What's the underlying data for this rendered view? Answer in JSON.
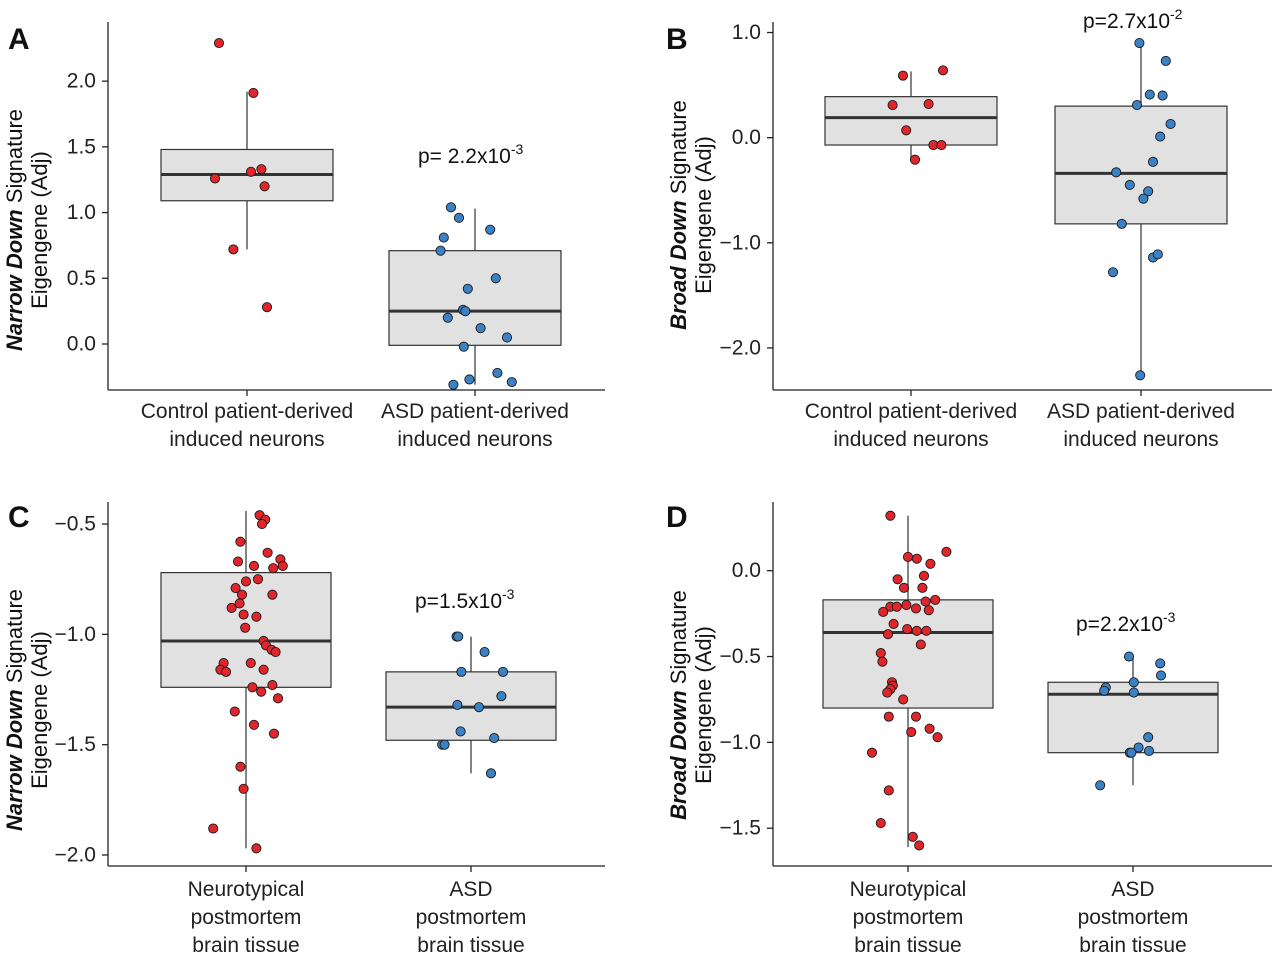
{
  "chart_data": [
    {
      "type": "box",
      "panel": "A",
      "ylabel_bold": "Narrow Down",
      "ylabel_rest": " Signature",
      "ylabel_line2": "Eigengene (Adj)",
      "ylim": [
        -0.35,
        2.45
      ],
      "yticks": [
        0.0,
        0.5,
        1.0,
        1.5,
        2.0
      ],
      "ytick_labels": [
        "0.0",
        "0.5",
        "1.0",
        "1.5",
        "2.0"
      ],
      "p_value": {
        "base": "2.2x10",
        "exp": "-3",
        "prefix": "p= "
      },
      "groups": [
        {
          "label": [
            "Control patient-derived",
            "induced neurons"
          ],
          "color": "#e0262b",
          "box": {
            "q1": 1.09,
            "median": 1.29,
            "q3": 1.48,
            "wlo": 0.72,
            "whi": 1.92
          },
          "points": [
            [
              -0.35,
              2.29
            ],
            [
              0.08,
              1.91
            ],
            [
              0.05,
              1.31
            ],
            [
              0.18,
              1.33
            ],
            [
              -0.4,
              1.26
            ],
            [
              0.22,
              1.2
            ],
            [
              -0.17,
              0.72
            ],
            [
              0.25,
              0.28
            ]
          ]
        },
        {
          "label": [
            "ASD patient-derived",
            "induced neurons"
          ],
          "color": "#3b82c4",
          "box": {
            "q1": -0.01,
            "median": 0.25,
            "q3": 0.71,
            "wlo": -0.31,
            "whi": 1.03
          },
          "points": [
            [
              -0.3,
              1.04
            ],
            [
              -0.2,
              0.96
            ],
            [
              0.19,
              0.87
            ],
            [
              -0.39,
              0.81
            ],
            [
              -0.43,
              0.71
            ],
            [
              0.26,
              0.5
            ],
            [
              -0.09,
              0.42
            ],
            [
              -0.15,
              0.26
            ],
            [
              -0.12,
              0.25
            ],
            [
              -0.34,
              0.2
            ],
            [
              0.07,
              0.12
            ],
            [
              0.4,
              0.05
            ],
            [
              -0.14,
              -0.02
            ],
            [
              0.28,
              -0.22
            ],
            [
              -0.07,
              -0.27
            ],
            [
              -0.27,
              -0.31
            ],
            [
              0.46,
              -0.29
            ]
          ]
        }
      ]
    },
    {
      "type": "box",
      "panel": "B",
      "ylabel_bold": "Broad Down",
      "ylabel_rest": " Signature",
      "ylabel_line2": "Eigengene (Adj)",
      "ylim": [
        -2.4,
        1.1
      ],
      "yticks": [
        -2.0,
        -1.0,
        0.0,
        1.0
      ],
      "ytick_labels": [
        "−2.0",
        "−1.0",
        "0.0",
        "1.0"
      ],
      "p_value": {
        "base": "p=2.7x10",
        "exp": "-2",
        "prefix": ""
      },
      "groups": [
        {
          "label": [
            "Control patient-derived",
            "induced neurons"
          ],
          "color": "#e0262b",
          "box": {
            "q1": -0.07,
            "median": 0.19,
            "q3": 0.39,
            "wlo": -0.22,
            "whi": 0.63
          },
          "points": [
            [
              -0.1,
              0.59
            ],
            [
              0.4,
              0.64
            ],
            [
              -0.23,
              0.31
            ],
            [
              0.22,
              0.32
            ],
            [
              -0.06,
              0.07
            ],
            [
              0.05,
              -0.21
            ],
            [
              0.28,
              -0.07
            ],
            [
              0.38,
              -0.07
            ]
          ]
        },
        {
          "label": [
            "ASD patient-derived",
            "induced neurons"
          ],
          "color": "#3b82c4",
          "box": {
            "q1": -0.82,
            "median": -0.34,
            "q3": 0.3,
            "wlo": -2.26,
            "whi": 0.9
          },
          "points": [
            [
              -0.02,
              0.9
            ],
            [
              0.31,
              0.73
            ],
            [
              0.11,
              0.41
            ],
            [
              0.27,
              0.4
            ],
            [
              -0.05,
              0.31
            ],
            [
              0.37,
              0.13
            ],
            [
              0.24,
              0.01
            ],
            [
              0.15,
              -0.23
            ],
            [
              -0.31,
              -0.33
            ],
            [
              -0.14,
              -0.45
            ],
            [
              0.09,
              -0.51
            ],
            [
              0.03,
              -0.58
            ],
            [
              -0.24,
              -0.82
            ],
            [
              0.15,
              -1.14
            ],
            [
              0.21,
              -1.11
            ],
            [
              -0.35,
              -1.28
            ],
            [
              -0.01,
              -2.26
            ]
          ]
        }
      ]
    },
    {
      "type": "box",
      "panel": "C",
      "ylabel_bold": "Narrow Down",
      "ylabel_rest": " Signature",
      "ylabel_line2": "Eigengene (Adj)",
      "ylim": [
        -2.05,
        -0.4
      ],
      "yticks": [
        -2.0,
        -1.5,
        -1.0,
        -0.5
      ],
      "ytick_labels": [
        "−2.0",
        "−1.5",
        "−1.0",
        "−0.5"
      ],
      "p_value": {
        "base": "p=1.5x10",
        "exp": "-3",
        "prefix": ""
      },
      "groups": [
        {
          "label": [
            "Neurotypical",
            "postmortem",
            "brain tissue"
          ],
          "color": "#e0262b",
          "box": {
            "q1": -1.24,
            "median": -1.03,
            "q3": -0.72,
            "wlo": -1.97,
            "whi": -0.44
          },
          "points": [
            [
              0.17,
              -0.46
            ],
            [
              0.24,
              -0.48
            ],
            [
              0.2,
              -0.5
            ],
            [
              -0.07,
              -0.58
            ],
            [
              0.27,
              -0.63
            ],
            [
              0.43,
              -0.66
            ],
            [
              0.46,
              -0.69
            ],
            [
              -0.1,
              -0.67
            ],
            [
              0.1,
              -0.69
            ],
            [
              0.34,
              -0.7
            ],
            [
              0.0,
              -0.76
            ],
            [
              0.15,
              -0.75
            ],
            [
              -0.13,
              -0.79
            ],
            [
              -0.05,
              -0.82
            ],
            [
              0.33,
              -0.82
            ],
            [
              -0.18,
              -0.88
            ],
            [
              -0.08,
              -0.86
            ],
            [
              -0.03,
              -0.91
            ],
            [
              0.13,
              -0.92
            ],
            [
              -0.01,
              -0.97
            ],
            [
              0.22,
              -1.03
            ],
            [
              0.25,
              -1.05
            ],
            [
              0.32,
              -1.07
            ],
            [
              0.37,
              -1.08
            ],
            [
              -0.28,
              -1.13
            ],
            [
              0.06,
              -1.13
            ],
            [
              0.22,
              -1.16
            ],
            [
              -0.32,
              -1.16
            ],
            [
              -0.25,
              -1.17
            ],
            [
              0.08,
              -1.24
            ],
            [
              0.33,
              -1.23
            ],
            [
              0.19,
              -1.26
            ],
            [
              0.4,
              -1.29
            ],
            [
              -0.14,
              -1.35
            ],
            [
              0.35,
              -1.45
            ],
            [
              0.1,
              -1.41
            ],
            [
              -0.07,
              -1.6
            ],
            [
              -0.03,
              -1.7
            ],
            [
              -0.41,
              -1.88
            ],
            [
              0.13,
              -1.97
            ]
          ]
        },
        {
          "label": [
            "ASD",
            "postmortem",
            "brain tissue"
          ],
          "color": "#3b82c4",
          "box": {
            "q1": -1.48,
            "median": -1.33,
            "q3": -1.17,
            "wlo": -1.63,
            "whi": -1.01
          },
          "points": [
            [
              -0.18,
              -1.01
            ],
            [
              -0.16,
              -1.01
            ],
            [
              0.17,
              -1.08
            ],
            [
              -0.12,
              -1.17
            ],
            [
              0.4,
              -1.17
            ],
            [
              0.38,
              -1.28
            ],
            [
              -0.17,
              -1.32
            ],
            [
              0.1,
              -1.33
            ],
            [
              -0.13,
              -1.44
            ],
            [
              -0.36,
              -1.5
            ],
            [
              -0.33,
              -1.5
            ],
            [
              0.29,
              -1.47
            ],
            [
              0.25,
              -1.63
            ]
          ]
        }
      ]
    },
    {
      "type": "box",
      "panel": "D",
      "ylabel_bold": "Broad Down",
      "ylabel_rest": " Signature",
      "ylabel_line2": "Eigengene (Adj)",
      "ylim": [
        -1.72,
        0.4
      ],
      "yticks": [
        -1.5,
        -1.0,
        -0.5,
        0.0
      ],
      "ytick_labels": [
        "−1.5",
        "−1.0",
        "−0.5",
        "0.0"
      ],
      "p_value": {
        "base": "p=2.2x10",
        "exp": "-3",
        "prefix": ""
      },
      "groups": [
        {
          "label": [
            "Neurotypical",
            "postmortem",
            "brain tissue"
          ],
          "color": "#e0262b",
          "box": {
            "q1": -0.8,
            "median": -0.36,
            "q3": -0.17,
            "wlo": -1.61,
            "whi": 0.32
          },
          "points": [
            [
              -0.22,
              0.32
            ],
            [
              0.0,
              0.08
            ],
            [
              0.48,
              0.11
            ],
            [
              0.28,
              0.04
            ],
            [
              0.11,
              0.07
            ],
            [
              0.2,
              -0.03
            ],
            [
              -0.13,
              -0.05
            ],
            [
              -0.05,
              -0.1
            ],
            [
              0.18,
              -0.1
            ],
            [
              0.34,
              -0.17
            ],
            [
              0.22,
              -0.18
            ],
            [
              -0.22,
              -0.21
            ],
            [
              -0.14,
              -0.21
            ],
            [
              0.1,
              -0.22
            ],
            [
              0.26,
              -0.23
            ],
            [
              -0.02,
              -0.2
            ],
            [
              -0.31,
              -0.24
            ],
            [
              -0.18,
              -0.31
            ],
            [
              -0.01,
              -0.34
            ],
            [
              -0.25,
              -0.37
            ],
            [
              0.11,
              -0.35
            ],
            [
              0.23,
              -0.35
            ],
            [
              0.16,
              -0.43
            ],
            [
              -0.34,
              -0.48
            ],
            [
              -0.32,
              -0.53
            ],
            [
              -0.2,
              -0.65
            ],
            [
              -0.19,
              -0.67
            ],
            [
              -0.22,
              -0.69
            ],
            [
              -0.26,
              -0.71
            ],
            [
              -0.06,
              -0.75
            ],
            [
              -0.24,
              -0.85
            ],
            [
              0.1,
              -0.85
            ],
            [
              0.27,
              -0.92
            ],
            [
              0.04,
              -0.94
            ],
            [
              0.37,
              -0.97
            ],
            [
              -0.45,
              -1.06
            ],
            [
              -0.24,
              -1.28
            ],
            [
              -0.34,
              -1.47
            ],
            [
              0.06,
              -1.55
            ],
            [
              0.14,
              -1.6
            ]
          ]
        },
        {
          "label": [
            "ASD",
            "postmortem",
            "brain tissue"
          ],
          "color": "#3b82c4",
          "box": {
            "q1": -1.06,
            "median": -0.72,
            "q3": -0.65,
            "wlo": -1.25,
            "whi": -0.5
          },
          "points": [
            [
              -0.05,
              -0.5
            ],
            [
              0.34,
              -0.54
            ],
            [
              -0.34,
              -0.68
            ],
            [
              -0.36,
              -0.7
            ],
            [
              0.01,
              -0.65
            ],
            [
              0.35,
              -0.61
            ],
            [
              0.01,
              -0.71
            ],
            [
              0.19,
              -0.97
            ],
            [
              0.07,
              -1.03
            ],
            [
              -0.04,
              -1.06
            ],
            [
              -0.02,
              -1.06
            ],
            [
              -0.41,
              -1.25
            ],
            [
              0.2,
              -1.05
            ]
          ]
        }
      ]
    }
  ]
}
